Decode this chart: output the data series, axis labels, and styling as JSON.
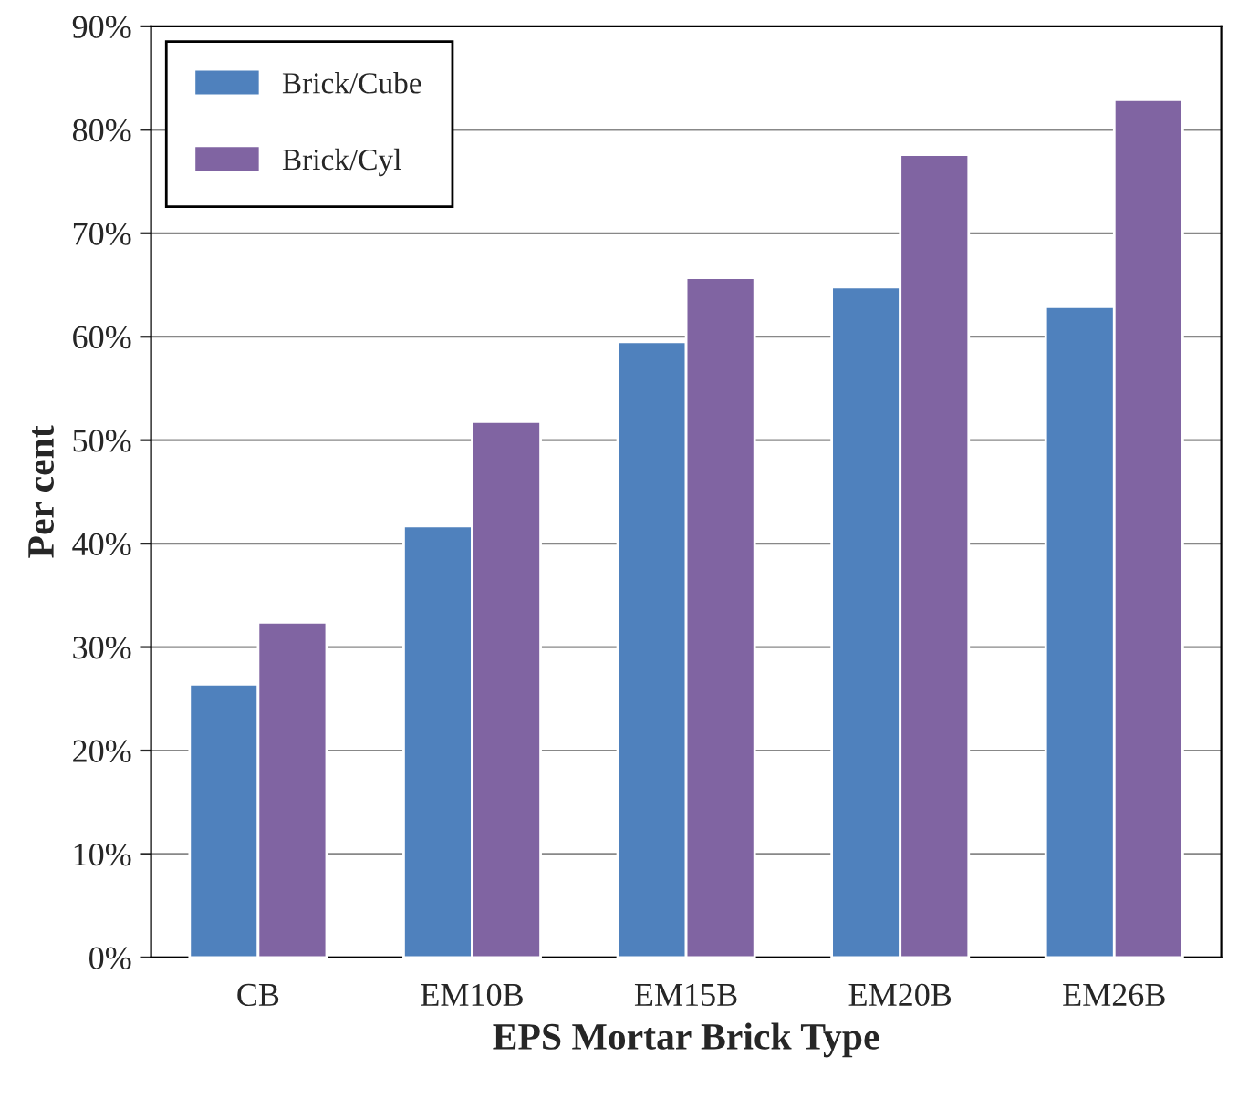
{
  "chart_data": {
    "type": "bar",
    "xlabel": "EPS Mortar Brick Type",
    "ylabel": "Per cent",
    "categories": [
      "CB",
      "EM10B",
      "EM15B",
      "EM20B",
      "EM26B"
    ],
    "series": [
      {
        "name": "Brick/Cube",
        "color": "#4f81bd",
        "values": [
          26.4,
          41.7,
          59.5,
          64.8,
          62.9
        ]
      },
      {
        "name": "Brick/Cyl",
        "color": "#8064a2",
        "values": [
          32.4,
          51.8,
          65.7,
          77.6,
          82.9
        ]
      }
    ],
    "ylim": [
      0,
      90
    ],
    "yticks": [
      {
        "value": 0,
        "label": "0%"
      },
      {
        "value": 10,
        "label": "10%"
      },
      {
        "value": 20,
        "label": "20%"
      },
      {
        "value": 30,
        "label": "30%"
      },
      {
        "value": 40,
        "label": "40%"
      },
      {
        "value": 50,
        "label": "50%"
      },
      {
        "value": 60,
        "label": "60%"
      },
      {
        "value": 70,
        "label": "70%"
      },
      {
        "value": 80,
        "label": "80%"
      },
      {
        "value": 90,
        "label": "90%"
      }
    ],
    "grid": "y",
    "legend": "top left"
  }
}
